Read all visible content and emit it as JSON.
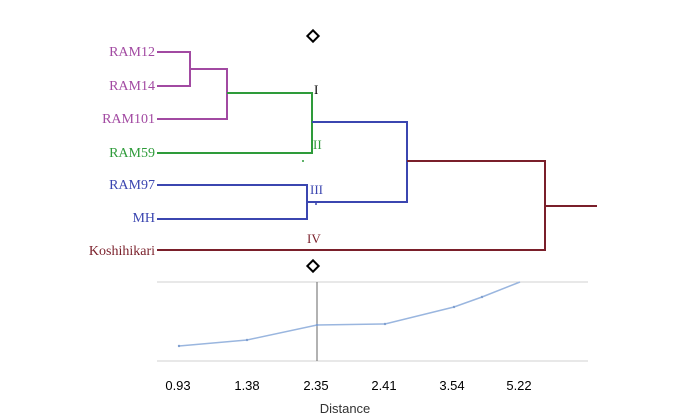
{
  "dendrogram": {
    "leaves": [
      {
        "label": "RAM12",
        "color": "#a24aa2"
      },
      {
        "label": "RAM14",
        "color": "#a24aa2"
      },
      {
        "label": "RAM101",
        "color": "#a24aa2"
      },
      {
        "label": "RAM59",
        "color": "#2e9b3a"
      },
      {
        "label": "RAM97",
        "color": "#3b46b0"
      },
      {
        "label": "MH",
        "color": "#3b46b0"
      },
      {
        "label": "Koshihikari",
        "color": "#7a1f2a"
      }
    ],
    "clusters": [
      {
        "label": "I",
        "color": "#000000"
      },
      {
        "label": "II",
        "color": "#2e9b3a"
      },
      {
        "label": "III",
        "color": "#3b46b0"
      },
      {
        "label": "IV",
        "color": "#7a1f2a"
      }
    ],
    "colors": {
      "purple": "#a24aa2",
      "green": "#2e9b3a",
      "blue": "#3b46b0",
      "maroon": "#7a1f2a"
    }
  },
  "distance_plot": {
    "xlabel": "Distance",
    "tick_labels": [
      "0.93",
      "1.38",
      "2.35",
      "2.41",
      "3.54",
      "5.22"
    ],
    "line_color": "#9ab6df"
  }
}
